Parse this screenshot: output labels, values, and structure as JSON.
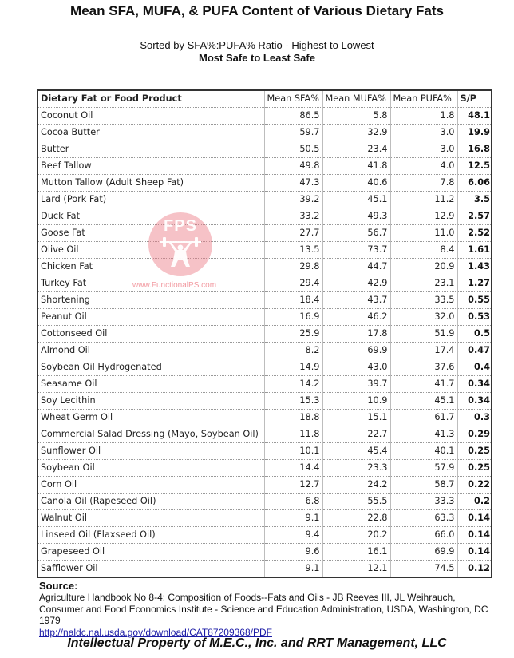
{
  "title": "Mean SFA, MUFA, & PUFA Content of Various Dietary Fats",
  "subtitle": "Sorted by SFA%:PUFA% Ratio - Highest to Lowest",
  "subtitle_bold": "Most Safe to Least Safe",
  "table": {
    "headers": [
      "Dietary Fat or Food Product",
      "Mean SFA%",
      "Mean MUFA%",
      "Mean PUFA%",
      "S/P"
    ],
    "rows": [
      {
        "product": "Coconut Oil",
        "sfa": "86.5",
        "mufa": "5.8",
        "pufa": "1.8",
        "sp": "48.1"
      },
      {
        "product": "Cocoa Butter",
        "sfa": "59.7",
        "mufa": "32.9",
        "pufa": "3.0",
        "sp": "19.9"
      },
      {
        "product": "Butter",
        "sfa": "50.5",
        "mufa": "23.4",
        "pufa": "3.0",
        "sp": "16.8"
      },
      {
        "product": "Beef Tallow",
        "sfa": "49.8",
        "mufa": "41.8",
        "pufa": "4.0",
        "sp": "12.5"
      },
      {
        "product": "Mutton Tallow (Adult Sheep Fat)",
        "sfa": "47.3",
        "mufa": "40.6",
        "pufa": "7.8",
        "sp": "6.06"
      },
      {
        "product": "Lard (Pork Fat)",
        "sfa": "39.2",
        "mufa": "45.1",
        "pufa": "11.2",
        "sp": "3.5"
      },
      {
        "product": "Duck Fat",
        "sfa": "33.2",
        "mufa": "49.3",
        "pufa": "12.9",
        "sp": "2.57"
      },
      {
        "product": "Goose Fat",
        "sfa": "27.7",
        "mufa": "56.7",
        "pufa": "11.0",
        "sp": "2.52"
      },
      {
        "product": "Olive Oil",
        "sfa": "13.5",
        "mufa": "73.7",
        "pufa": "8.4",
        "sp": "1.61"
      },
      {
        "product": "Chicken Fat",
        "sfa": "29.8",
        "mufa": "44.7",
        "pufa": "20.9",
        "sp": "1.43"
      },
      {
        "product": "Turkey Fat",
        "sfa": "29.4",
        "mufa": "42.9",
        "pufa": "23.1",
        "sp": "1.27"
      },
      {
        "product": "Shortening",
        "sfa": "18.4",
        "mufa": "43.7",
        "pufa": "33.5",
        "sp": "0.55"
      },
      {
        "product": "Peanut Oil",
        "sfa": "16.9",
        "mufa": "46.2",
        "pufa": "32.0",
        "sp": "0.53"
      },
      {
        "product": "Cottonseed Oil",
        "sfa": "25.9",
        "mufa": "17.8",
        "pufa": "51.9",
        "sp": "0.5"
      },
      {
        "product": "Almond Oil",
        "sfa": "8.2",
        "mufa": "69.9",
        "pufa": "17.4",
        "sp": "0.47"
      },
      {
        "product": "Soybean Oil Hydrogenated",
        "sfa": "14.9",
        "mufa": "43.0",
        "pufa": "37.6",
        "sp": "0.4"
      },
      {
        "product": "Seasame Oil",
        "sfa": "14.2",
        "mufa": "39.7",
        "pufa": "41.7",
        "sp": "0.34"
      },
      {
        "product": "Soy Lecithin",
        "sfa": "15.3",
        "mufa": "10.9",
        "pufa": "45.1",
        "sp": "0.34"
      },
      {
        "product": "Wheat Germ Oil",
        "sfa": "18.8",
        "mufa": "15.1",
        "pufa": "61.7",
        "sp": "0.3"
      },
      {
        "product": "Commercial Salad Dressing (Mayo, Soybean Oil)",
        "sfa": "11.8",
        "mufa": "22.7",
        "pufa": "41.3",
        "sp": "0.29"
      },
      {
        "product": "Sunflower Oil",
        "sfa": "10.1",
        "mufa": "45.4",
        "pufa": "40.1",
        "sp": "0.25"
      },
      {
        "product": "Soybean Oil",
        "sfa": "14.4",
        "mufa": "23.3",
        "pufa": "57.9",
        "sp": "0.25"
      },
      {
        "product": "Corn Oil",
        "sfa": "12.7",
        "mufa": "24.2",
        "pufa": "58.7",
        "sp": "0.22"
      },
      {
        "product": "Canola Oil (Rapeseed Oil)",
        "sfa": "6.8",
        "mufa": "55.5",
        "pufa": "33.3",
        "sp": "0.2"
      },
      {
        "product": "Walnut Oil",
        "sfa": "9.1",
        "mufa": "22.8",
        "pufa": "63.3",
        "sp": "0.14"
      },
      {
        "product": "Linseed Oil (Flaxseed Oil)",
        "sfa": "9.4",
        "mufa": "20.2",
        "pufa": "66.0",
        "sp": "0.14"
      },
      {
        "product": "Grapeseed Oil",
        "sfa": "9.6",
        "mufa": "16.1",
        "pufa": "69.9",
        "sp": "0.14"
      },
      {
        "product": "Safflower Oil",
        "sfa": "9.1",
        "mufa": "12.1",
        "pufa": "74.5",
        "sp": "0.12"
      }
    ]
  },
  "watermark": {
    "logo_text": "FPS",
    "url_text": "www.FunctionalPS.com",
    "icon": "weightlifter-icon",
    "color": "#ec7882"
  },
  "source": {
    "label": "Source:",
    "text": "Agriculture Handbook No 8-4: Composition of Foods--Fats and Oils - JB Reeves III, JL Weihrauch, Consumer and Food Economics Institute - Science and Education Administration, USDA, Washington, DC 1979",
    "link": "http://naldc.nal.usda.gov/download/CAT87209368/PDF"
  },
  "footer": {
    "ip_notice": "Intellectual Property of M.E.C., Inc. and RRT Management, LLC"
  },
  "colors": {
    "link": "#1a1aa6",
    "table_border": "#333333",
    "grid": "#bdbdbd"
  }
}
